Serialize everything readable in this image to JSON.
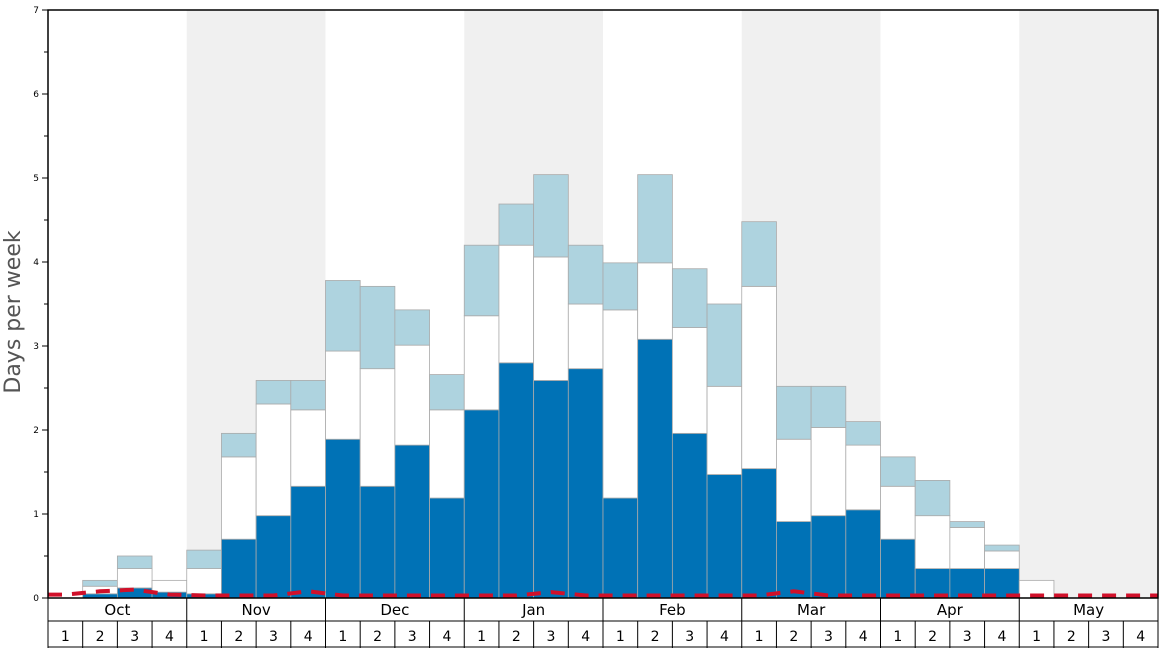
{
  "chart_data": {
    "type": "bar",
    "ylabel": "Days per week",
    "ylim": [
      0,
      7
    ],
    "y_ticks": [
      "0",
      "1",
      "2",
      "3",
      "4",
      "5",
      "6",
      "7"
    ],
    "months": [
      "Oct",
      "Nov",
      "Dec",
      "Jan",
      "Feb",
      "Mar",
      "Apr",
      "May"
    ],
    "week_labels": [
      "1",
      "2",
      "3",
      "4"
    ],
    "stacked": true,
    "colors": {
      "dark": "#0072b6",
      "white": "#ffffff",
      "light": "#aed3df",
      "line": "#d0102a",
      "band": "#f0f0f0",
      "bar_edge": "#aaaaaa"
    },
    "series": [
      {
        "color": "#0072b6",
        "values": [
          0,
          0.05,
          0.12,
          0.07,
          0.05,
          0.7,
          0.98,
          1.33,
          1.89,
          1.33,
          1.82,
          1.19,
          2.24,
          2.8,
          2.59,
          2.73,
          1.19,
          3.08,
          1.96,
          1.47,
          1.54,
          0.91,
          0.98,
          1.05,
          0.7,
          0.35,
          0.35,
          0.35,
          0,
          0,
          0,
          0
        ]
      },
      {
        "color": "#ffffff",
        "values": [
          0,
          0.09,
          0.23,
          0.14,
          0.3,
          0.98,
          1.33,
          0.91,
          1.05,
          1.4,
          1.19,
          1.05,
          1.12,
          1.4,
          1.47,
          0.77,
          2.24,
          0.91,
          1.26,
          1.05,
          2.17,
          0.98,
          1.05,
          0.77,
          0.63,
          0.63,
          0.49,
          0.21,
          0.21,
          0,
          0,
          0
        ]
      },
      {
        "color": "#aed3df",
        "values": [
          0,
          0.07,
          0.15,
          0,
          0.22,
          0.28,
          0.28,
          0.35,
          0.84,
          0.98,
          0.42,
          0.42,
          0.84,
          0.49,
          0.98,
          0.7,
          0.56,
          1.05,
          0.7,
          0.98,
          0.77,
          0.63,
          0.49,
          0.28,
          0.35,
          0.42,
          0.07,
          0.07,
          0,
          0,
          0,
          0
        ]
      }
    ],
    "line": {
      "style": "dashed",
      "values": [
        0.04,
        0.08,
        0.1,
        0.04,
        0.03,
        0.03,
        0.03,
        0.08,
        0.03,
        0.03,
        0.03,
        0.03,
        0.03,
        0.03,
        0.07,
        0.03,
        0.03,
        0.03,
        0.03,
        0.03,
        0.03,
        0.08,
        0.03,
        0.03,
        0.03,
        0.03,
        0.03,
        0.03,
        0.03,
        0.03,
        0.03,
        0.03
      ]
    }
  }
}
